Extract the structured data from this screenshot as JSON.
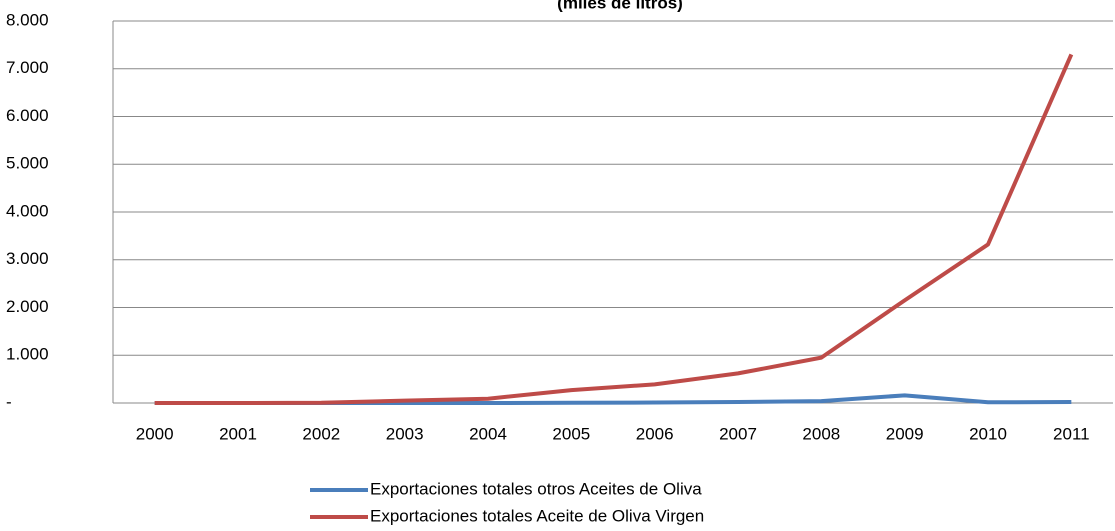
{
  "chart_data": {
    "type": "line",
    "title": "(miles de litros)",
    "categories": [
      "2000",
      "2001",
      "2002",
      "2003",
      "2004",
      "2005",
      "2006",
      "2007",
      "2008",
      "2009",
      "2010",
      "2011"
    ],
    "series": [
      {
        "name": "Exportaciones totales otros Aceites de Oliva",
        "color": "#4a7ebb",
        "values": [
          0,
          0,
          0,
          0,
          0,
          5,
          10,
          20,
          40,
          160,
          15,
          20
        ]
      },
      {
        "name": "Exportaciones totales Aceite de Oliva Virgen",
        "color": "#be4b48",
        "values": [
          0,
          0,
          5,
          50,
          90,
          270,
          390,
          620,
          950,
          2150,
          3320,
          7300
        ]
      }
    ],
    "ylim": [
      0,
      8000
    ],
    "yticks": [
      {
        "value": 0,
        "label": "-"
      },
      {
        "value": 1000,
        "label": "1.000"
      },
      {
        "value": 2000,
        "label": "2.000"
      },
      {
        "value": 3000,
        "label": "3.000"
      },
      {
        "value": 4000,
        "label": "4.000"
      },
      {
        "value": 5000,
        "label": "5.000"
      },
      {
        "value": 6000,
        "label": "6.000"
      },
      {
        "value": 7000,
        "label": "7.000"
      },
      {
        "value": 8000,
        "label": "8.000"
      }
    ],
    "grid": true,
    "legend": "bottom"
  }
}
